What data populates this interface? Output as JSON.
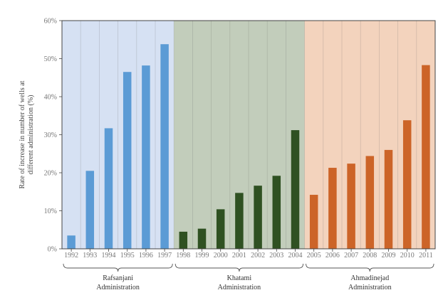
{
  "chart_data": {
    "type": "bar",
    "title": "",
    "xlabel": "",
    "ylabel_lines": [
      "Rate of increase in number of wells at",
      "different administration (%)"
    ],
    "ylim": [
      0,
      60
    ],
    "yticks": [
      "0%",
      "10%",
      "20%",
      "30%",
      "40%",
      "50%",
      "60%"
    ],
    "grid": "vertical",
    "categories": [
      "1992",
      "1993",
      "1994",
      "1995",
      "1996",
      "1997",
      "1998",
      "1999",
      "2000",
      "2001",
      "2002",
      "2003",
      "2004",
      "2005",
      "2006",
      "2007",
      "2008",
      "2009",
      "2010",
      "2011"
    ],
    "values": [
      3.5,
      20.5,
      31.7,
      46.5,
      48.2,
      53.8,
      4.5,
      5.3,
      10.4,
      14.7,
      16.6,
      19.2,
      31.2,
      14.2,
      21.3,
      22.4,
      24.4,
      26.0,
      33.8,
      48.3
    ],
    "groups": [
      {
        "name_lines": [
          "Rafsanjani",
          "Administration"
        ],
        "start": 0,
        "end": 5,
        "bar_color": "#5b9bd5",
        "band_color": "#d6e1f3"
      },
      {
        "name_lines": [
          "Khatami",
          "Administration"
        ],
        "start": 6,
        "end": 12,
        "bar_color": "#2f5122",
        "band_color": "#c2cdbb"
      },
      {
        "name_lines": [
          "Ahmadinejad",
          "Administration"
        ],
        "start": 13,
        "end": 19,
        "bar_color": "#cc6428",
        "band_color": "#f3d3bd"
      }
    ]
  }
}
